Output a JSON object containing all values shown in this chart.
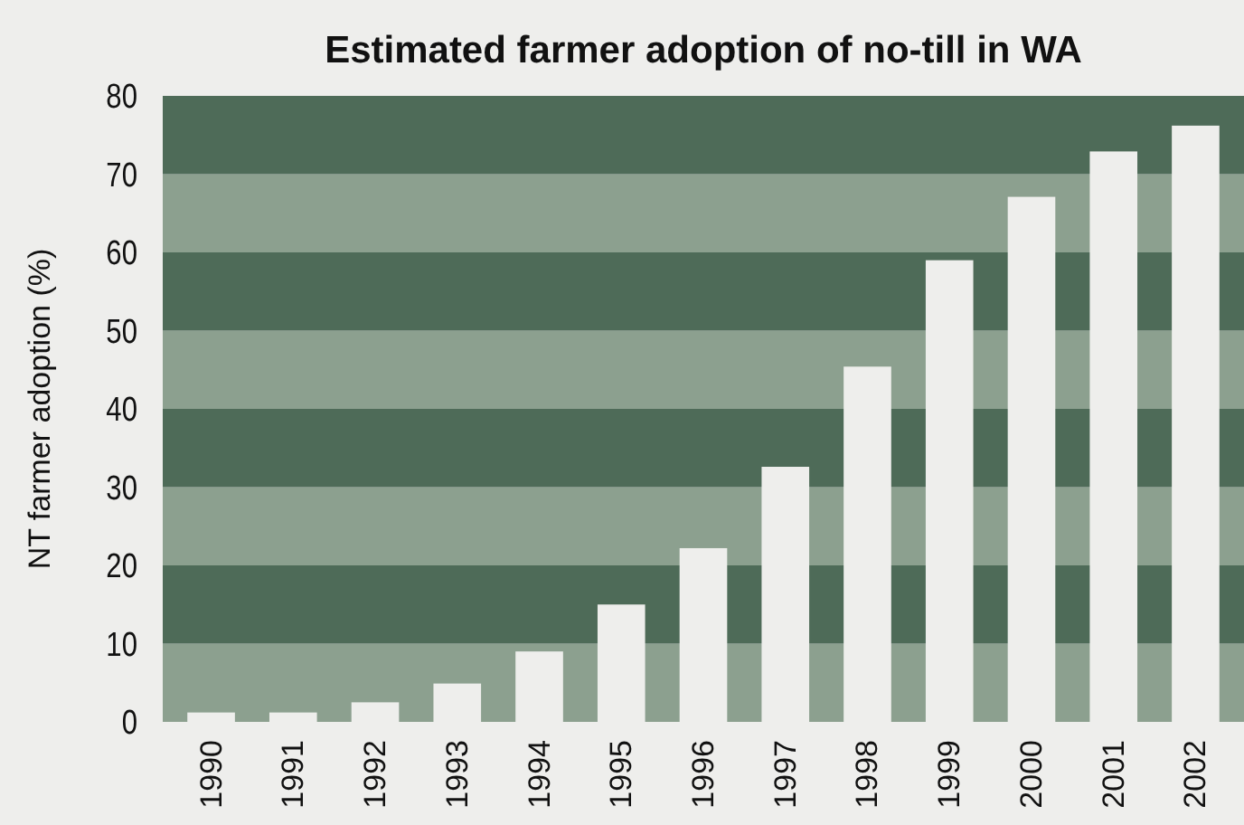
{
  "chart_data": {
    "type": "bar",
    "title": "Estimated farmer adoption of no-till in WA",
    "ylabel": "NT farmer adoption (%)",
    "categories": [
      "1990",
      "1991",
      "1992",
      "1993",
      "1994",
      "1995",
      "1996",
      "1997",
      "1998",
      "1999",
      "2000",
      "2001",
      "2002"
    ],
    "values": [
      1.2,
      1.2,
      2.5,
      4.9,
      9,
      15,
      22.2,
      32.6,
      45.4,
      59,
      67.1,
      72.9,
      76.2
    ],
    "color": "#eeeeec",
    "ylim": [
      0,
      80
    ],
    "yticks": [
      0,
      10,
      20,
      30,
      40,
      50,
      60,
      70,
      80
    ]
  }
}
